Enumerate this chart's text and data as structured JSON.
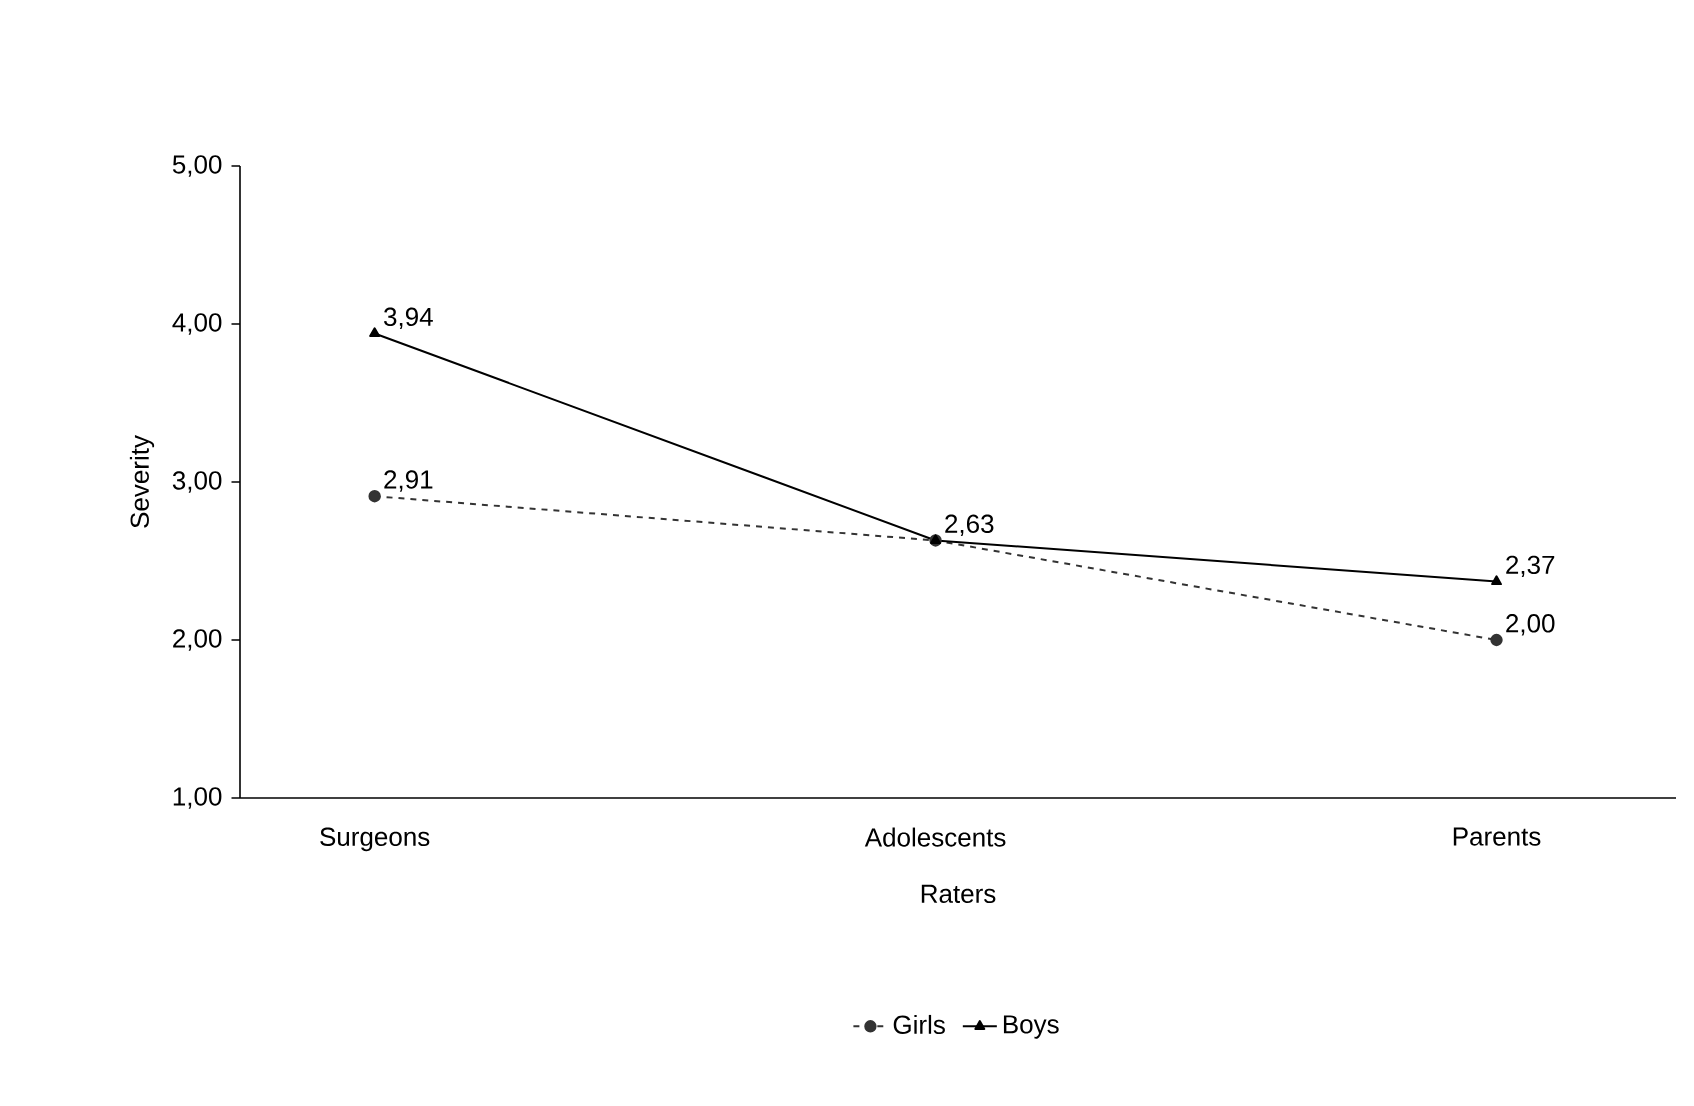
{
  "chart_data": {
    "type": "line",
    "xlabel": "Raters",
    "ylabel": "Severity",
    "categories": [
      "Surgeons",
      "Adolescents",
      "Parents"
    ],
    "series": [
      {
        "name": "Girls",
        "color": "#333333",
        "values": [
          2.91,
          2.63,
          2.0
        ],
        "marker": "circle",
        "line_style": "dashed",
        "value_labels": [
          "2,91",
          "2,63",
          "2,00"
        ]
      },
      {
        "name": "Boys",
        "color": "#000000",
        "values": [
          3.94,
          2.63,
          2.37
        ],
        "marker": "triangle",
        "line_style": "solid",
        "value_labels": [
          "3,94",
          null,
          "2,37"
        ]
      }
    ],
    "ylim": [
      1,
      5
    ],
    "yticks": [
      {
        "value": 1,
        "label": "1,00"
      },
      {
        "value": 2,
        "label": "2,00"
      },
      {
        "value": 3,
        "label": "3,00"
      },
      {
        "value": 4,
        "label": "4,00"
      },
      {
        "value": 5,
        "label": "5,00"
      }
    ],
    "grid": false,
    "legend": "bottom"
  }
}
